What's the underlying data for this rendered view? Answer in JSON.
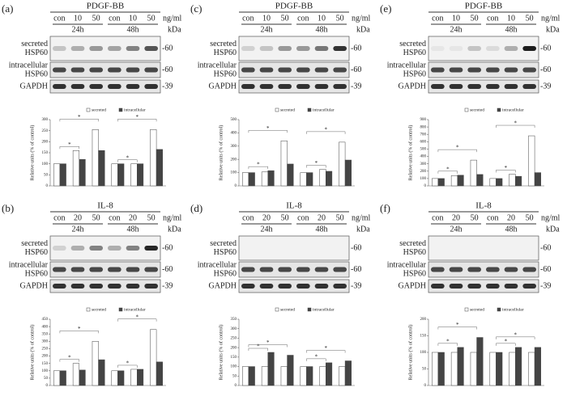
{
  "panels": [
    {
      "label": "(a)",
      "treatment": "PDGF-BB",
      "doses": [
        "con",
        "10",
        "50",
        "con",
        "10",
        "50"
      ],
      "unit": "ng/ml",
      "times": [
        "24h",
        "48h"
      ],
      "kda": "kDa",
      "rows": [
        {
          "label": [
            "secreted",
            "HSP60"
          ],
          "marker": "-60"
        },
        {
          "label": [
            "intracellular",
            "HSP60"
          ],
          "marker": "-60"
        },
        {
          "label": [
            "GAPDH"
          ],
          "marker": "-39"
        }
      ]
    },
    {
      "label": "(b)",
      "treatment": "IL-8",
      "doses": [
        "con",
        "20",
        "50",
        "con",
        "20",
        "50"
      ],
      "unit": "ng/ml",
      "times": [
        "24h",
        "48h"
      ],
      "kda": "kDa",
      "rows": [
        {
          "label": [
            "secreted",
            "HSP60"
          ],
          "marker": "-60"
        },
        {
          "label": [
            "intracellular",
            "HSP60"
          ],
          "marker": "-60"
        },
        {
          "label": [
            "GAPDH"
          ],
          "marker": "-39"
        }
      ]
    },
    {
      "label": "(c)",
      "treatment": "PDGF-BB",
      "doses": [
        "con",
        "10",
        "50",
        "con",
        "10",
        "50"
      ],
      "unit": "ng/ml",
      "times": [
        "24h",
        "48h"
      ],
      "kda": "kDa",
      "rows": [
        {
          "label": [
            "secreted",
            "HSP60"
          ],
          "marker": "-60"
        },
        {
          "label": [
            "intracellular",
            "HSP60"
          ],
          "marker": "-60"
        },
        {
          "label": [
            "GAPDH"
          ],
          "marker": "-39"
        }
      ]
    },
    {
      "label": "(d)",
      "treatment": "IL-8",
      "doses": [
        "con",
        "20",
        "50",
        "con",
        "20",
        "50"
      ],
      "unit": "ng/ml",
      "times": [
        "24h",
        "48h"
      ],
      "kda": "kDa",
      "rows": [
        {
          "label": [
            "secreted",
            "HSP60"
          ],
          "marker": "-60"
        },
        {
          "label": [
            "intracellular",
            "HSP60"
          ],
          "marker": "-60"
        },
        {
          "label": [
            "GAPDH"
          ],
          "marker": "-39"
        }
      ]
    },
    {
      "label": "(e)",
      "treatment": "PDGF-BB",
      "doses": [
        "con",
        "10",
        "50",
        "con",
        "10",
        "50"
      ],
      "unit": "ng/ml",
      "times": [
        "24h",
        "48h"
      ],
      "kda": "kDa",
      "rows": [
        {
          "label": [
            "secreted",
            "HSP60"
          ],
          "marker": "-60"
        },
        {
          "label": [
            "intracellular",
            "HSP60"
          ],
          "marker": "-60"
        },
        {
          "label": [
            "GAPDH"
          ],
          "marker": "-39"
        }
      ]
    },
    {
      "label": "(f)",
      "treatment": "IL-8",
      "doses": [
        "con",
        "20",
        "50",
        "con",
        "20",
        "50"
      ],
      "unit": "ng/ml",
      "times": [
        "24h",
        "48h"
      ],
      "kda": "kDa",
      "rows": [
        {
          "label": [
            "secreted",
            "HSP60"
          ],
          "marker": "-60"
        },
        {
          "label": [
            "intracellular",
            "HSP60"
          ],
          "marker": "-60"
        },
        {
          "label": [
            "GAPDH"
          ],
          "marker": "-39"
        }
      ]
    }
  ],
  "chart_data": [
    {
      "type": "bar",
      "ylabel": "Relative units (% of control)",
      "categories": [
        null,
        null,
        null,
        null,
        null,
        null
      ],
      "ylim": [
        0,
        300
      ],
      "yticks": [
        0,
        50,
        100,
        150,
        200,
        250,
        300
      ],
      "series": [
        {
          "name": "secreted",
          "color": "#ffffff",
          "values": [
            100,
            160,
            255,
            100,
            100,
            255
          ]
        },
        {
          "name": "intracellular",
          "color": "#444444",
          "values": [
            100,
            120,
            160,
            100,
            100,
            165
          ]
        }
      ],
      "annotations": [
        "*",
        "*",
        "*",
        "*"
      ]
    },
    {
      "type": "bar",
      "ylabel": "Relative units (% of control)",
      "categories": [
        null,
        null,
        null,
        null,
        null,
        null
      ],
      "ylim": [
        0,
        450
      ],
      "yticks": [
        0,
        50,
        100,
        150,
        200,
        250,
        300,
        350,
        400,
        450
      ],
      "series": [
        {
          "name": "secreted",
          "color": "#ffffff",
          "values": [
            100,
            150,
            300,
            100,
            110,
            380
          ]
        },
        {
          "name": "intracellular",
          "color": "#444444",
          "values": [
            100,
            105,
            175,
            100,
            110,
            160
          ]
        }
      ],
      "annotations": [
        "*",
        "*",
        "*",
        "*"
      ]
    },
    {
      "type": "bar",
      "ylabel": "Relative units (% of control)",
      "categories": [
        null,
        null,
        null,
        null,
        null,
        null
      ],
      "ylim": [
        0,
        500
      ],
      "yticks": [
        0,
        100,
        200,
        300,
        400,
        500
      ],
      "series": [
        {
          "name": "secreted",
          "color": "#ffffff",
          "values": [
            100,
            105,
            340,
            100,
            125,
            330
          ]
        },
        {
          "name": "intracellular",
          "color": "#444444",
          "values": [
            100,
            115,
            165,
            100,
            110,
            195
          ]
        }
      ],
      "annotations": [
        "*",
        "*",
        "*",
        "*"
      ]
    },
    {
      "type": "bar",
      "ylabel": "Relative units (% of control)",
      "categories": [
        null,
        null,
        null,
        null,
        null,
        null
      ],
      "ylim": [
        0,
        350
      ],
      "yticks": [
        0,
        50,
        100,
        150,
        200,
        250,
        300,
        350
      ],
      "series": [
        {
          "name": "secreted",
          "color": "#ffffff",
          "values": [
            100,
            100,
            100,
            100,
            100,
            100
          ]
        },
        {
          "name": "intracellular",
          "color": "#444444",
          "values": [
            100,
            175,
            160,
            100,
            120,
            130
          ]
        }
      ],
      "annotations": [
        "*",
        "*",
        "*",
        "*"
      ]
    },
    {
      "type": "bar",
      "ylabel": "Relative units (% of control)",
      "categories": [
        null,
        null,
        null,
        null,
        null,
        null
      ],
      "ylim": [
        0,
        900
      ],
      "yticks": [
        0,
        100,
        200,
        300,
        400,
        500,
        600,
        700,
        800,
        900
      ],
      "series": [
        {
          "name": "secreted",
          "color": "#ffffff",
          "values": [
            100,
            140,
            350,
            100,
            160,
            680
          ]
        },
        {
          "name": "intracellular",
          "color": "#444444",
          "values": [
            100,
            145,
            155,
            100,
            130,
            180
          ]
        }
      ],
      "annotations": [
        "*",
        "*",
        "*",
        "*"
      ]
    },
    {
      "type": "bar",
      "ylabel": "Relative units (% of control)",
      "categories": [
        null,
        null,
        null,
        null,
        null,
        null
      ],
      "ylim": [
        0,
        200
      ],
      "yticks": [
        0,
        50,
        100,
        150,
        200
      ],
      "series": [
        {
          "name": "secreted",
          "color": "#ffffff",
          "values": [
            100,
            100,
            100,
            100,
            100,
            100
          ]
        },
        {
          "name": "intracellular",
          "color": "#444444",
          "values": [
            100,
            115,
            145,
            100,
            115,
            115
          ]
        }
      ],
      "annotations": [
        "*",
        "*",
        "*",
        "*"
      ]
    }
  ]
}
